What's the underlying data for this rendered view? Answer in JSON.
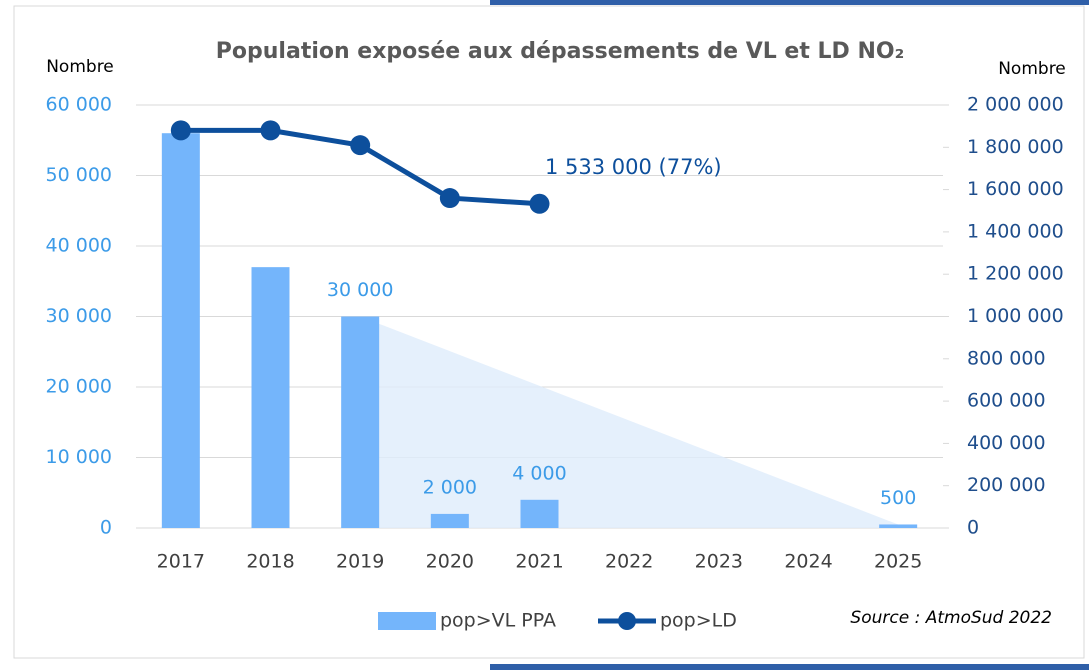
{
  "chart_data": {
    "type": "bar",
    "title": "Population exposée aux dépassements de VL et LD NO₂",
    "y_label": "Nombre",
    "y2_label": "Nombre",
    "source": "Source : AtmoSud 2022",
    "annotation": "1 533 000 (77%)",
    "categories": [
      "2017",
      "2018",
      "2019",
      "2020",
      "2021",
      "2022",
      "2023",
      "2024",
      "2025"
    ],
    "series": [
      {
        "name": "pop>VL PPA",
        "type": "bar",
        "color": "#74b5fb",
        "values": [
          56000,
          37000,
          30000,
          2000,
          4000,
          null,
          null,
          null,
          500
        ],
        "value_labels": [
          null,
          null,
          "30 000",
          "2 000",
          "4 000",
          null,
          null,
          null,
          "500"
        ]
      },
      {
        "name": "pop>LD",
        "type": "line",
        "axis": "y2",
        "color": "#0d4f9c",
        "values": [
          1880000,
          1880000,
          1810000,
          1560000,
          1533000,
          null,
          null,
          null,
          null
        ]
      }
    ],
    "trend_area": {
      "color": "#deecfb",
      "values": [
        null,
        null,
        30000,
        null,
        null,
        null,
        null,
        null,
        500
      ]
    },
    "ylim": [
      0,
      60000
    ],
    "yticks": [
      {
        "value": 0,
        "label": "0"
      },
      {
        "value": 10000,
        "label": "10 000"
      },
      {
        "value": 20000,
        "label": "20 000"
      },
      {
        "value": 30000,
        "label": "30 000"
      },
      {
        "value": 40000,
        "label": "40 000"
      },
      {
        "value": 50000,
        "label": "50 000"
      },
      {
        "value": 60000,
        "label": "60 000"
      }
    ],
    "y2lim": [
      0,
      2000000
    ],
    "y2ticks": [
      {
        "value": 0,
        "label": "0"
      },
      {
        "value": 200000,
        "label": "200 000"
      },
      {
        "value": 400000,
        "label": "400 000"
      },
      {
        "value": 600000,
        "label": "600 000"
      },
      {
        "value": 800000,
        "label": "800 000"
      },
      {
        "value": 1000000,
        "label": "1 000 000"
      },
      {
        "value": 1200000,
        "label": "1 200 000"
      },
      {
        "value": 1400000,
        "label": "1 400 000"
      },
      {
        "value": 1600000,
        "label": "1 600 000"
      },
      {
        "value": 1800000,
        "label": "1 800 000"
      },
      {
        "value": 2000000,
        "label": "2 000 000"
      }
    ],
    "grid": true
  }
}
